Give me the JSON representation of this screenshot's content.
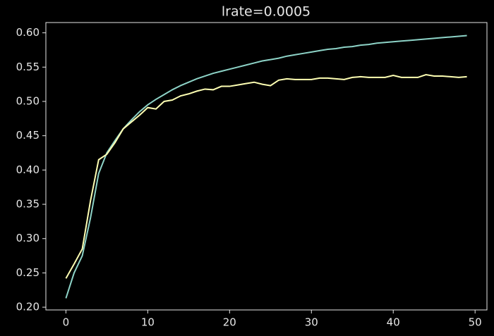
{
  "chart_data": {
    "type": "line",
    "title": "lrate=0.0005",
    "x": [
      0,
      1,
      2,
      3,
      4,
      5,
      6,
      7,
      8,
      9,
      10,
      11,
      12,
      13,
      14,
      15,
      16,
      17,
      18,
      19,
      20,
      21,
      22,
      23,
      24,
      25,
      26,
      27,
      28,
      29,
      30,
      31,
      32,
      33,
      34,
      35,
      36,
      37,
      38,
      39,
      40,
      41,
      42,
      43,
      44,
      45,
      46,
      47,
      48,
      49
    ],
    "series": [
      {
        "color": "#8dd3c7",
        "values": [
          0.213,
          0.25,
          0.275,
          0.33,
          0.395,
          0.425,
          0.443,
          0.46,
          0.473,
          0.485,
          0.495,
          0.503,
          0.51,
          0.517,
          0.523,
          0.528,
          0.533,
          0.537,
          0.541,
          0.544,
          0.547,
          0.55,
          0.553,
          0.556,
          0.559,
          0.561,
          0.563,
          0.566,
          0.568,
          0.57,
          0.572,
          0.574,
          0.576,
          0.577,
          0.579,
          0.58,
          0.582,
          0.583,
          0.585,
          0.586,
          0.587,
          0.588,
          0.589,
          0.59,
          0.591,
          0.592,
          0.593,
          0.594,
          0.595,
          0.596
        ]
      },
      {
        "color": "#feffb3",
        "values": [
          0.242,
          0.263,
          0.285,
          0.355,
          0.415,
          0.423,
          0.44,
          0.46,
          0.47,
          0.48,
          0.491,
          0.489,
          0.5,
          0.502,
          0.508,
          0.511,
          0.515,
          0.518,
          0.517,
          0.522,
          0.522,
          0.524,
          0.526,
          0.528,
          0.525,
          0.523,
          0.531,
          0.533,
          0.532,
          0.532,
          0.532,
          0.534,
          0.534,
          0.533,
          0.532,
          0.535,
          0.536,
          0.535,
          0.535,
          0.535,
          0.538,
          0.535,
          0.535,
          0.535,
          0.539,
          0.537,
          0.537,
          0.536,
          0.535,
          0.536
        ]
      }
    ],
    "xlim": [
      -2.45,
      51.45
    ],
    "xticks": [
      0,
      10,
      20,
      30,
      40,
      50
    ],
    "ylim": [
      0.196,
      0.615
    ],
    "yticks": [
      {
        "value": 0.2,
        "label": "0.20"
      },
      0.25,
      {
        "value": 0.3,
        "label": "0.30"
      },
      0.35,
      {
        "value": 0.4,
        "label": "0.40"
      },
      0.45,
      {
        "value": 0.5,
        "label": "0.50"
      },
      0.55,
      {
        "value": 0.6,
        "label": "0.60"
      }
    ],
    "grid": false
  }
}
